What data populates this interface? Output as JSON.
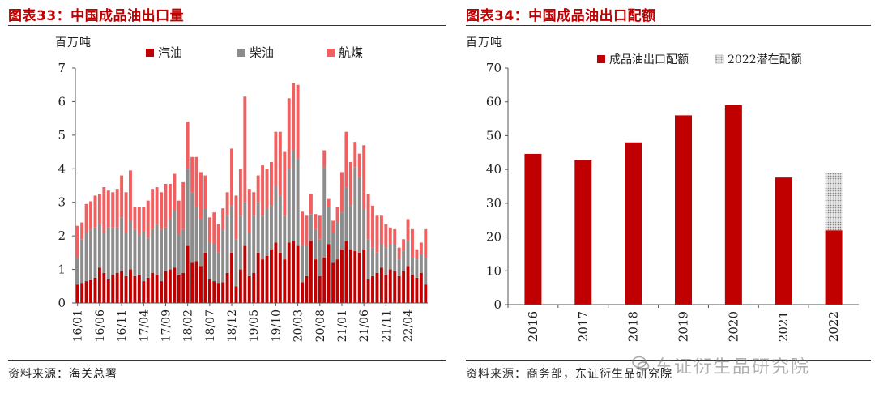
{
  "charts": {
    "left": {
      "title": "图表33：中国成品油出口量",
      "unit": "百万吨",
      "source": "资料来源：海关总署"
    },
    "right": {
      "title": "图表34：中国成品油出口配额",
      "unit": "百万吨",
      "source": "资料来源：商务部，东证衍生品研究院"
    }
  },
  "watermark": "东证衍生品研究院",
  "chart_data": [
    {
      "type": "bar",
      "stacked": true,
      "title": "图表33：中国成品油出口量",
      "ylabel": "百万吨",
      "ylim": [
        0,
        7
      ],
      "yticks": [
        0,
        1,
        2,
        3,
        4,
        5,
        6,
        7
      ],
      "grid": false,
      "legend": "top",
      "x_tick_labels": [
        "16/01",
        "16/06",
        "16/11",
        "17/04",
        "17/09",
        "18/02",
        "18/07",
        "18/12",
        "19/05",
        "19/10",
        "20/03",
        "20/08",
        "21/01",
        "21/06",
        "21/11",
        "22/04"
      ],
      "x": [
        "16/01",
        "16/02",
        "16/03",
        "16/04",
        "16/05",
        "16/06",
        "16/07",
        "16/08",
        "16/09",
        "16/10",
        "16/11",
        "16/12",
        "17/01",
        "17/02",
        "17/03",
        "17/04",
        "17/05",
        "17/06",
        "17/07",
        "17/08",
        "17/09",
        "17/10",
        "17/11",
        "17/12",
        "18/01",
        "18/02",
        "18/03",
        "18/04",
        "18/05",
        "18/06",
        "18/07",
        "18/08",
        "18/09",
        "18/10",
        "18/11",
        "18/12",
        "19/01",
        "19/02",
        "19/03",
        "19/04",
        "19/05",
        "19/06",
        "19/07",
        "19/08",
        "19/09",
        "19/10",
        "19/11",
        "19/12",
        "20/01",
        "20/02",
        "20/03",
        "20/04",
        "20/05",
        "20/06",
        "20/07",
        "20/08",
        "20/09",
        "20/10",
        "20/11",
        "20/12",
        "21/01",
        "21/02",
        "21/03",
        "21/04",
        "21/05",
        "21/06",
        "21/07",
        "21/08",
        "21/09",
        "21/10",
        "21/11",
        "21/12",
        "22/01",
        "22/02",
        "22/03",
        "22/04",
        "22/05",
        "22/06",
        "22/07",
        "22/08"
      ],
      "series": [
        {
          "name": "汽油",
          "color": "#c00000",
          "values": [
            0.55,
            0.6,
            0.65,
            0.68,
            0.75,
            1.05,
            0.9,
            0.7,
            0.85,
            0.9,
            0.95,
            0.8,
            1.0,
            0.8,
            0.85,
            0.65,
            0.75,
            0.9,
            0.85,
            0.65,
            0.95,
            1.0,
            1.05,
            0.85,
            0.9,
            1.7,
            1.2,
            1.25,
            1.1,
            1.5,
            0.7,
            0.65,
            0.6,
            0.62,
            0.9,
            1.5,
            0.5,
            1.0,
            1.7,
            0.8,
            0.9,
            1.5,
            1.3,
            1.4,
            1.6,
            1.8,
            1.5,
            1.3,
            1.8,
            1.85,
            1.7,
            0.62,
            0.8,
            1.85,
            1.3,
            0.8,
            1.35,
            1.75,
            1.2,
            1.3,
            1.6,
            1.85,
            1.6,
            1.55,
            1.5,
            1.6,
            0.7,
            0.8,
            0.9,
            1.05,
            0.85,
            1.0,
            0.95,
            0.8,
            0.95,
            1.1,
            0.85,
            0.75,
            0.9,
            0.55
          ]
        },
        {
          "name": "柴油",
          "color": "#8c8c8c",
          "values": [
            0.8,
            1.3,
            1.45,
            1.5,
            1.5,
            1.3,
            1.2,
            1.55,
            1.4,
            1.35,
            1.6,
            1.3,
            1.45,
            1.4,
            1.2,
            1.5,
            1.2,
            1.3,
            1.5,
            1.55,
            1.3,
            1.5,
            1.7,
            1.2,
            1.3,
            2.3,
            2.1,
            1.6,
            1.4,
            1.3,
            1.1,
            1.1,
            0.9,
            1.55,
            1.7,
            1.4,
            1.4,
            1.6,
            1.3,
            1.3,
            1.7,
            1.5,
            1.3,
            1.4,
            1.3,
            1.7,
            1.7,
            1.3,
            2.2,
            2.7,
            2.6,
            1.1,
            0.9,
            0.8,
            0.9,
            1.1,
            2.7,
            1.1,
            0.9,
            1.1,
            1.1,
            1.6,
            1.3,
            2.5,
            2.25,
            1.2,
            1.2,
            0.85,
            0.6,
            0.7,
            0.8,
            0.75,
            0.8,
            0.5,
            0.6,
            0.75,
            0.5,
            0.55,
            0.55,
            0.8
          ]
        },
        {
          "name": "航煤",
          "color": "#f06060",
          "values": [
            0.95,
            0.5,
            0.85,
            0.85,
            0.95,
            0.9,
            1.35,
            1.1,
            1.05,
            1.15,
            1.25,
            1.2,
            1.5,
            0.65,
            0.8,
            0.7,
            1.1,
            1.2,
            1.1,
            1.1,
            1.3,
            1.05,
            1.1,
            1.0,
            1.4,
            1.4,
            1.05,
            1.5,
            1.4,
            1.0,
            0.75,
            0.95,
            0.85,
            0.65,
            0.7,
            1.7,
            1.3,
            1.4,
            3.15,
            1.3,
            0.7,
            0.8,
            1.5,
            1.2,
            1.3,
            1.6,
            1.9,
            1.9,
            2.1,
            2.0,
            2.2,
            1.0,
            0.9,
            0.6,
            0.45,
            0.7,
            0.5,
            0.25,
            0.35,
            0.45,
            1.2,
            1.65,
            1.3,
            0.75,
            0.7,
            1.9,
            1.35,
            1.25,
            1.1,
            0.85,
            0.7,
            0.5,
            0.45,
            0.35,
            0.35,
            0.65,
            0.85,
            0.3,
            0.35,
            0.85
          ]
        }
      ]
    },
    {
      "type": "bar",
      "stacked": true,
      "title": "图表34：中国成品油出口配额",
      "ylabel": "百万吨",
      "ylim": [
        0,
        70
      ],
      "yticks": [
        0,
        10,
        20,
        30,
        40,
        50,
        60,
        70
      ],
      "grid": false,
      "legend": "top",
      "categories": [
        "2016",
        "2017",
        "2018",
        "2019",
        "2020",
        "2021",
        "2022"
      ],
      "series": [
        {
          "name": "成品油出口配额",
          "color": "#c00000",
          "values": [
            44.6,
            42.7,
            48.0,
            56.0,
            59.0,
            37.6,
            22.0
          ]
        },
        {
          "name": "2022潜在配额",
          "color": "#b8b8b8",
          "pattern": "dots",
          "values": [
            0,
            0,
            0,
            0,
            0,
            0,
            17.0
          ]
        }
      ]
    }
  ]
}
